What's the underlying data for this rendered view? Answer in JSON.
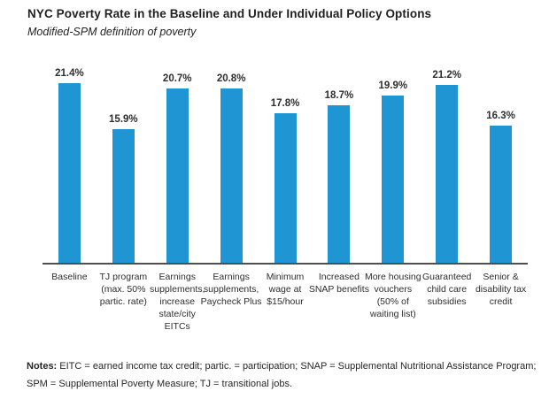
{
  "title": "NYC Poverty Rate in the Baseline and Under Individual Policy Options",
  "subtitle": "Modified-SPM definition of poverty",
  "chart_data": {
    "type": "bar",
    "title": "NYC Poverty Rate in the Baseline and Under Individual Policy Options",
    "subtitle": "Modified-SPM definition of poverty",
    "categories": [
      "Baseline",
      "TJ program (max. 50% partic. rate)",
      "Earnings supplements, increase state/city EITCs",
      "Earnings supplements, Paycheck Plus",
      "Minimum wage at $15/hour",
      "Increased SNAP benefits",
      "More housing vouchers (50% of waiting list)",
      "Guaranteed child care subsidies",
      "Senior & disability tax credit"
    ],
    "values": [
      21.4,
      15.9,
      20.7,
      20.8,
      17.8,
      18.7,
      19.9,
      21.2,
      16.3
    ],
    "value_labels": [
      "21.4%",
      "15.9%",
      "20.7%",
      "20.8%",
      "17.8%",
      "18.7%",
      "19.9%",
      "21.2%",
      "16.3%"
    ],
    "xlabel": "",
    "ylabel": "",
    "ylim": [
      0,
      23.7
    ],
    "grid": false,
    "legend_position": "none",
    "bar_color": "#2095d4",
    "axis_color": "#4f4f51"
  },
  "notes": {
    "label": "Notes:",
    "text": " EITC = earned income tax credit; partic. = participation; SNAP = Supplemental Nutritional Assistance Program; SPM = Supplemental Poverty Measure; TJ = transitional jobs."
  }
}
